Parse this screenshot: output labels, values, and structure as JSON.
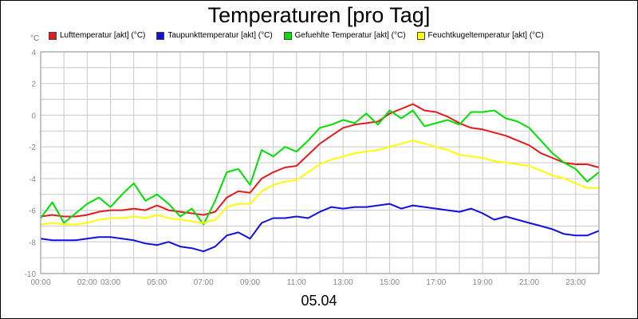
{
  "header": {
    "title": "Temperaturen [pro Tag]",
    "unit": "°C",
    "date": "05.04"
  },
  "chart_data": {
    "type": "line",
    "title": "Temperaturen [pro Tag]",
    "xlabel": "05.04",
    "ylabel": "°C",
    "ylim": [
      -10,
      4
    ],
    "xlim": [
      0,
      24
    ],
    "grid": true,
    "legend_position": "top",
    "y_ticks": [
      -10,
      -8,
      -6,
      -4,
      -2,
      0,
      2,
      4
    ],
    "x_ticks": [
      {
        "pos": 0,
        "label": "00:00"
      },
      {
        "pos": 2,
        "label": "02:00"
      },
      {
        "pos": 3,
        "label": "03:00"
      },
      {
        "pos": 5,
        "label": "05:00"
      },
      {
        "pos": 7,
        "label": "07:00"
      },
      {
        "pos": 9,
        "label": "09:00"
      },
      {
        "pos": 11,
        "label": "11:00"
      },
      {
        "pos": 13,
        "label": "13:00"
      },
      {
        "pos": 15,
        "label": "15:00"
      },
      {
        "pos": 17,
        "label": "17:00"
      },
      {
        "pos": 19,
        "label": "19:00"
      },
      {
        "pos": 21,
        "label": "21:00"
      },
      {
        "pos": 23,
        "label": "23:00"
      }
    ],
    "series": [
      {
        "name": "Lufttemperatur [akt] (°C)",
        "color": "#e41a1c",
        "x": [
          0,
          0.5,
          1,
          1.5,
          2,
          2.5,
          3,
          3.5,
          4,
          4.5,
          5,
          5.5,
          6,
          6.5,
          7,
          7.5,
          8,
          8.5,
          9,
          9.5,
          10,
          10.5,
          11,
          11.5,
          12,
          12.5,
          13,
          13.5,
          14,
          14.5,
          15,
          15.5,
          16,
          16.5,
          17,
          17.5,
          18,
          18.5,
          19,
          19.5,
          20,
          20.5,
          21,
          21.5,
          22,
          22.5,
          23,
          23.5,
          24
        ],
        "y": [
          -6.4,
          -6.3,
          -6.4,
          -6.4,
          -6.3,
          -6.1,
          -6.0,
          -6.0,
          -5.9,
          -6.0,
          -5.7,
          -6.0,
          -6.1,
          -6.2,
          -6.3,
          -6.1,
          -5.2,
          -4.8,
          -4.9,
          -4.0,
          -3.6,
          -3.3,
          -3.2,
          -2.5,
          -1.8,
          -1.3,
          -0.8,
          -0.6,
          -0.5,
          -0.4,
          0.1,
          0.4,
          0.7,
          0.3,
          0.2,
          -0.1,
          -0.5,
          -0.8,
          -0.9,
          -1.1,
          -1.3,
          -1.6,
          -1.9,
          -2.4,
          -2.7,
          -3.0,
          -3.1,
          -3.1,
          -3.3
        ]
      },
      {
        "name": "Taupunkttemperatur [akt] (°C)",
        "color": "#1010e0",
        "x": [
          0,
          0.5,
          1,
          1.5,
          2,
          2.5,
          3,
          3.5,
          4,
          4.5,
          5,
          5.5,
          6,
          6.5,
          7,
          7.5,
          8,
          8.5,
          9,
          9.5,
          10,
          10.5,
          11,
          11.5,
          12,
          12.5,
          13,
          13.5,
          14,
          14.5,
          15,
          15.5,
          16,
          16.5,
          17,
          17.5,
          18,
          18.5,
          19,
          19.5,
          20,
          20.5,
          21,
          21.5,
          22,
          22.5,
          23,
          23.5,
          24
        ],
        "y": [
          -7.8,
          -7.9,
          -7.9,
          -7.9,
          -7.8,
          -7.7,
          -7.7,
          -7.8,
          -7.9,
          -8.1,
          -8.2,
          -8.0,
          -8.3,
          -8.4,
          -8.6,
          -8.3,
          -7.6,
          -7.4,
          -7.8,
          -6.8,
          -6.5,
          -6.5,
          -6.4,
          -6.5,
          -6.1,
          -5.8,
          -5.9,
          -5.8,
          -5.8,
          -5.7,
          -5.6,
          -5.9,
          -5.7,
          -5.8,
          -5.9,
          -6.0,
          -6.1,
          -5.9,
          -6.2,
          -6.6,
          -6.4,
          -6.6,
          -6.8,
          -7.0,
          -7.2,
          -7.5,
          -7.6,
          -7.6,
          -7.3
        ]
      },
      {
        "name": "Gefuehlte Temperatur [akt] (°C)",
        "color": "#00e000",
        "x": [
          0,
          0.5,
          1,
          1.5,
          2,
          2.5,
          3,
          3.5,
          4,
          4.5,
          5,
          5.5,
          6,
          6.5,
          7,
          7.5,
          8,
          8.5,
          9,
          9.5,
          10,
          10.5,
          11,
          11.5,
          12,
          12.5,
          13,
          13.5,
          14,
          14.5,
          15,
          15.5,
          16,
          16.5,
          17,
          17.5,
          18,
          18.5,
          19,
          19.5,
          20,
          20.5,
          21,
          21.5,
          22,
          22.5,
          23,
          23.5,
          24
        ],
        "y": [
          -6.5,
          -5.5,
          -6.8,
          -6.2,
          -5.6,
          -5.2,
          -5.8,
          -5.0,
          -4.3,
          -5.4,
          -5.0,
          -5.6,
          -6.4,
          -5.9,
          -6.9,
          -5.4,
          -3.6,
          -3.4,
          -4.4,
          -2.2,
          -2.6,
          -2.0,
          -2.3,
          -1.6,
          -0.8,
          -0.6,
          -0.3,
          -0.5,
          0.1,
          -0.6,
          0.3,
          -0.2,
          0.3,
          -0.7,
          -0.5,
          -0.3,
          -0.6,
          0.2,
          0.2,
          0.3,
          -0.2,
          -0.4,
          -0.8,
          -1.6,
          -2.4,
          -3.0,
          -3.4,
          -4.2,
          -3.6
        ]
      },
      {
        "name": "Feuchtkugeltemperatur [akt] (°C)",
        "color": "#ffff00",
        "x": [
          0,
          0.5,
          1,
          1.5,
          2,
          2.5,
          3,
          3.5,
          4,
          4.5,
          5,
          5.5,
          6,
          6.5,
          7,
          7.5,
          8,
          8.5,
          9,
          9.5,
          10,
          10.5,
          11,
          11.5,
          12,
          12.5,
          13,
          13.5,
          14,
          14.5,
          15,
          15.5,
          16,
          16.5,
          17,
          17.5,
          18,
          18.5,
          19,
          19.5,
          20,
          20.5,
          21,
          21.5,
          22,
          22.5,
          23,
          23.5,
          24
        ],
        "y": [
          -6.9,
          -6.8,
          -6.9,
          -6.9,
          -6.8,
          -6.6,
          -6.5,
          -6.5,
          -6.4,
          -6.5,
          -6.3,
          -6.5,
          -6.6,
          -6.7,
          -6.8,
          -6.6,
          -5.8,
          -5.6,
          -5.6,
          -4.8,
          -4.4,
          -4.2,
          -4.1,
          -3.6,
          -3.1,
          -2.8,
          -2.6,
          -2.4,
          -2.3,
          -2.2,
          -2.0,
          -1.8,
          -1.6,
          -1.8,
          -2.0,
          -2.2,
          -2.5,
          -2.6,
          -2.7,
          -2.9,
          -3.0,
          -3.1,
          -3.2,
          -3.5,
          -3.8,
          -4.0,
          -4.3,
          -4.6,
          -4.6
        ]
      }
    ]
  }
}
